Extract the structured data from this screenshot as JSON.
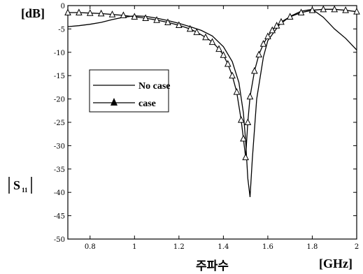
{
  "chart_data": {
    "type": "line",
    "title": "",
    "ylabel_unit": "[dB]",
    "ylabel": "|S11|",
    "ylabel_main": "S",
    "ylabel_sub": "11",
    "xlabel": "주파수",
    "xlabel_unit": "[GHz]",
    "xlim": [
      0.7,
      2.0
    ],
    "ylim": [
      -50,
      0
    ],
    "x_ticks": [
      0.8,
      1,
      1.2,
      1.4,
      1.6,
      1.8,
      2
    ],
    "x_tick_labels": [
      "0.8",
      "1",
      "1.2",
      "1.4",
      "1.6",
      "1.8",
      "2"
    ],
    "y_ticks": [
      0,
      -5,
      -10,
      -15,
      -20,
      -25,
      -30,
      -35,
      -40,
      -45,
      -50
    ],
    "y_tick_labels": [
      "0",
      "-5",
      "-10",
      "-15",
      "-20",
      "-25",
      "-30",
      "-35",
      "-40",
      "-45",
      "-50"
    ],
    "grid": false,
    "legend_position": "left-middle",
    "series": [
      {
        "name": "No case",
        "marker": "none",
        "x": [
          0.7,
          0.75,
          0.8,
          0.85,
          0.9,
          0.95,
          1.0,
          1.05,
          1.1,
          1.15,
          1.2,
          1.25,
          1.3,
          1.35,
          1.4,
          1.44,
          1.47,
          1.49,
          1.5,
          1.51,
          1.52,
          1.53,
          1.55,
          1.58,
          1.6,
          1.65,
          1.7,
          1.75,
          1.8,
          1.85,
          1.9,
          1.95,
          2.0
        ],
        "y": [
          -4.5,
          -4.3,
          -4.0,
          -3.6,
          -3.0,
          -2.5,
          -2.2,
          -2.3,
          -2.7,
          -3.2,
          -3.8,
          -4.5,
          -5.3,
          -6.5,
          -8.8,
          -12.0,
          -16.5,
          -23.0,
          -29.0,
          -37.0,
          -41.0,
          -33.0,
          -20.0,
          -11.0,
          -7.5,
          -4.2,
          -2.3,
          -1.2,
          -0.8,
          -2.5,
          -5.0,
          -7.0,
          -9.5
        ]
      },
      {
        "name": "case",
        "marker": "triangle",
        "x": [
          0.7,
          0.75,
          0.8,
          0.85,
          0.9,
          0.95,
          1.0,
          1.05,
          1.1,
          1.15,
          1.2,
          1.25,
          1.28,
          1.32,
          1.35,
          1.38,
          1.4,
          1.42,
          1.44,
          1.46,
          1.48,
          1.49,
          1.5,
          1.51,
          1.52,
          1.54,
          1.56,
          1.58,
          1.6,
          1.62,
          1.64,
          1.66,
          1.7,
          1.75,
          1.8,
          1.85,
          1.9,
          1.95,
          2.0
        ],
        "y": [
          -1.5,
          -1.5,
          -1.6,
          -1.7,
          -1.9,
          -2.1,
          -2.4,
          -2.7,
          -3.1,
          -3.6,
          -4.2,
          -5.0,
          -5.7,
          -6.8,
          -7.8,
          -9.3,
          -10.6,
          -12.5,
          -15.0,
          -18.5,
          -24.5,
          -28.5,
          -32.5,
          -25.0,
          -19.5,
          -14.0,
          -10.5,
          -8.2,
          -6.6,
          -5.3,
          -4.3,
          -3.5,
          -2.4,
          -1.5,
          -1.0,
          -0.8,
          -0.8,
          -1.0,
          -1.3
        ]
      }
    ]
  }
}
